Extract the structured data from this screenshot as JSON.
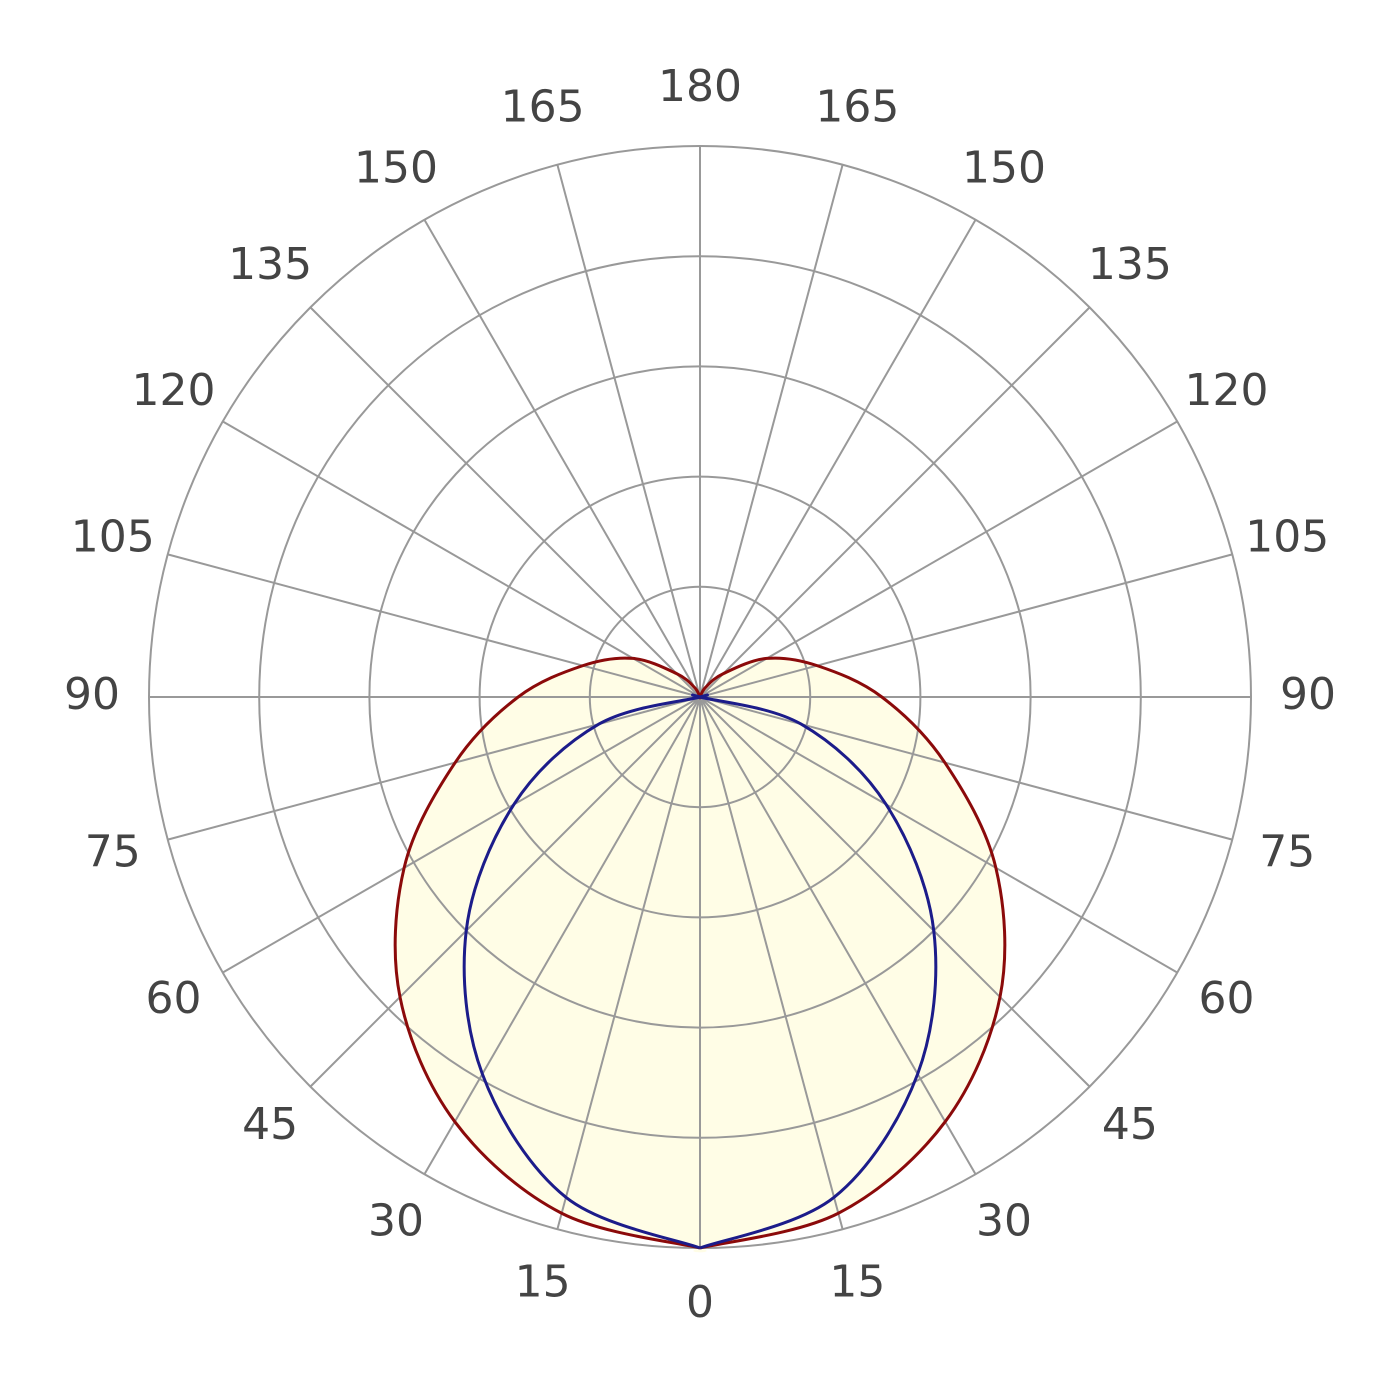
{
  "chart_data": {
    "type": "polar",
    "angle_ticks": [
      0,
      15,
      30,
      45,
      60,
      75,
      90,
      105,
      120,
      135,
      150,
      165,
      180
    ],
    "rlim": [
      0,
      100
    ],
    "rticks": [
      20,
      40,
      60,
      80,
      100
    ],
    "fill": "#fffde6",
    "series": [
      {
        "color": "#8b0a0a",
        "values": [
          100,
          97,
          89,
          77,
          62,
          46,
          33,
          22,
          14,
          6,
          2,
          0,
          0
        ]
      },
      {
        "color": "#1c1c8a",
        "values": [
          100,
          94,
          79,
          60,
          39,
          19,
          0,
          0,
          0,
          0,
          0,
          0,
          0
        ]
      }
    ]
  }
}
